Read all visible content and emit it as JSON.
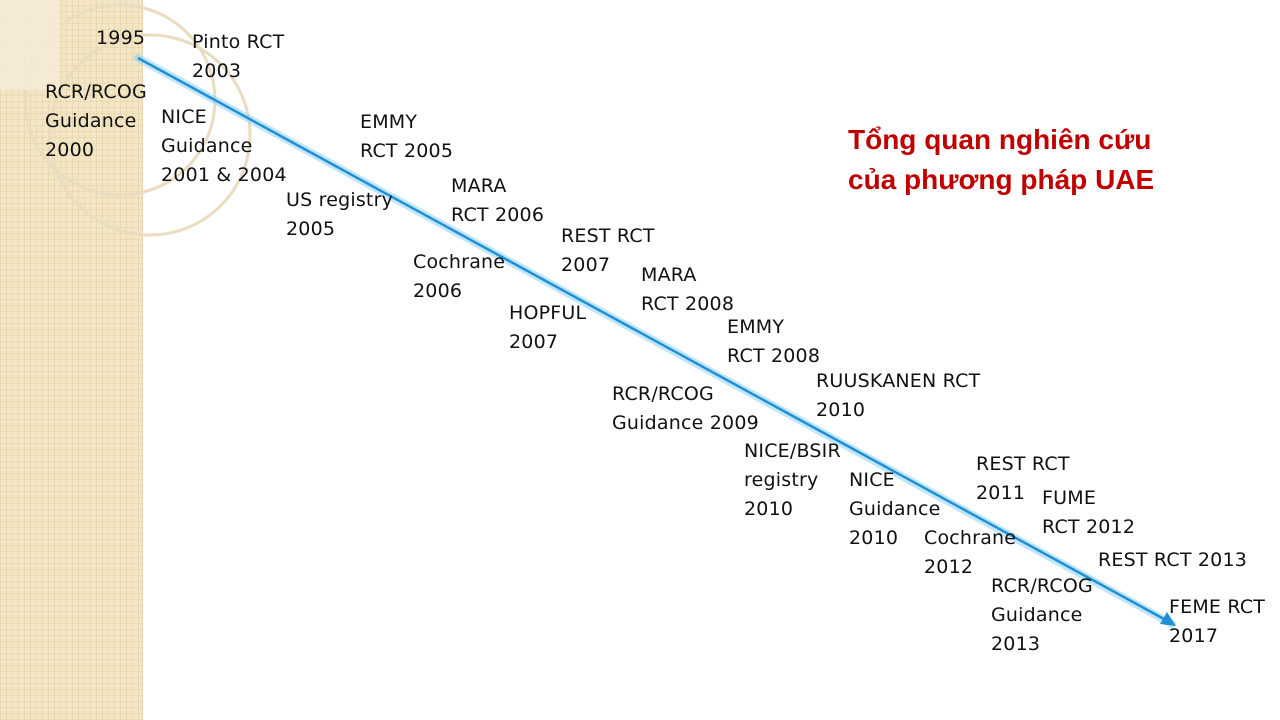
{
  "title": {
    "text": "Tổng quan nghiên cứu\ncủa phương pháp UAE",
    "color": "#c00000"
  },
  "timeline": {
    "arrow_color": "#1f8fd6",
    "glow_color": "#8fd3f5"
  },
  "labels": {
    "year_1995": "1995",
    "pinto_rct": "Pinto RCT\n2003",
    "rcr_rcog_2000": "RCR/RCOG\nGuidance\n2000",
    "nice_2001_2004": "NICE\nGuidance\n2001 & 2004",
    "emmy_2005": "EMMY\nRCT 2005",
    "us_registry": "US registry\n2005",
    "mara_2006": "MARA\nRCT 2006",
    "cochrane_2006": "Cochrane\n2006",
    "rest_2007": "REST RCT\n2007",
    "hopful_2007": "HOPFUL\n2007",
    "mara_2008": "MARA\nRCT 2008",
    "emmy_2008": "EMMY\nRCT 2008",
    "rcr_rcog_2009": "RCR/RCOG\nGuidance 2009",
    "ruuskanen_2010": "RUUSKANEN RCT\n2010",
    "nice_bsir_2010": "NICE/BSIR\nregistry\n2010",
    "nice_2010": "NICE\nGuidance\n2010",
    "rest_2011": "REST RCT\n2011",
    "fume_2012": "FUME\nRCT 2012",
    "cochrane_2012": "Cochrane\n2012",
    "rest_2013": "REST RCT 2013",
    "rcr_rcog_2013": "RCR/RCOG\nGuidance\n2013",
    "feme_2017": "FEME RCT\n2017"
  }
}
